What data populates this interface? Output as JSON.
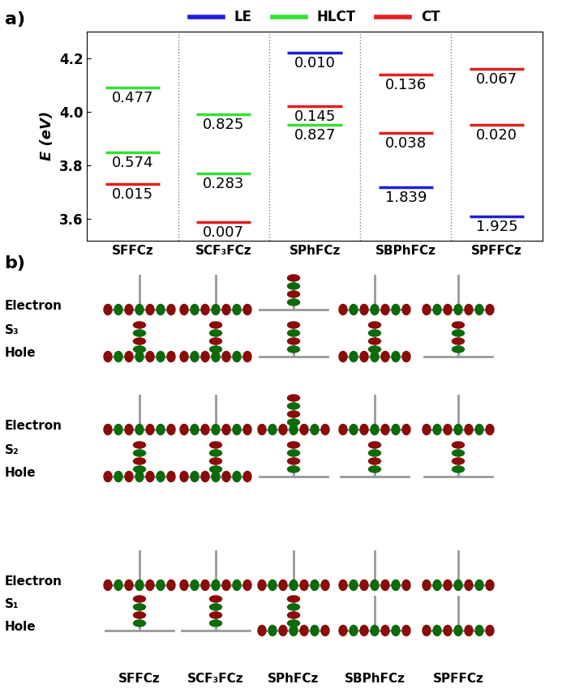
{
  "chart_data": {
    "type": "energy_levels",
    "panel_label": "a)",
    "categories": [
      "SFFCz",
      "SCF₃FCz",
      "SPhFCz",
      "SBPhFCz",
      "SPFFCz"
    ],
    "y_label": "E (eV)",
    "ylim": [
      3.52,
      4.3
    ],
    "yticks": [
      3.6,
      3.8,
      4.0,
      4.2
    ],
    "legend": "top",
    "series": [
      {
        "name": "LE",
        "color": "#1f1fd6",
        "points": [
          {
            "category": "SPhFCz",
            "value": 4.22,
            "label": "0.010"
          },
          {
            "category": "SBPhFCz",
            "value": 3.72,
            "label": "1.839"
          },
          {
            "category": "SPFFCz",
            "value": 3.61,
            "label": "1.925"
          }
        ]
      },
      {
        "name": "HLCT",
        "color": "#33e033",
        "points": [
          {
            "category": "SFFCz",
            "value": 4.09,
            "label": "0.477"
          },
          {
            "category": "SFFCz",
            "value": 3.85,
            "label": "0.574"
          },
          {
            "category": "SCF₃FCz",
            "value": 3.99,
            "label": "0.825"
          },
          {
            "category": "SCF₃FCz",
            "value": 3.77,
            "label": "0.283"
          },
          {
            "category": "SPhFCz",
            "value": 3.95,
            "label": "0.827"
          }
        ]
      },
      {
        "name": "CT",
        "color": "#e02020",
        "points": [
          {
            "category": "SFFCz",
            "value": 3.73,
            "label": "0.015"
          },
          {
            "category": "SCF₃FCz",
            "value": 3.59,
            "label": "0.007"
          },
          {
            "category": "SPhFCz",
            "value": 4.02,
            "label": "0.145"
          },
          {
            "category": "SBPhFCz",
            "value": 4.14,
            "label": "0.136"
          },
          {
            "category": "SBPhFCz",
            "value": 3.92,
            "label": "0.038"
          },
          {
            "category": "SPFFCz",
            "value": 4.16,
            "label": "0.067"
          },
          {
            "category": "SPFFCz",
            "value": 3.95,
            "label": "0.020"
          }
        ]
      }
    ]
  },
  "panel_b": {
    "panel_label": "b)",
    "columns": [
      "SFFCz",
      "SCF₃FCz",
      "SPhFCz",
      "SBPhFCz",
      "SPFFCz"
    ],
    "rows": [
      {
        "state": "S₃",
        "electron": "Electron",
        "hole": "Hole"
      },
      {
        "state": "S₂",
        "electron": "Electron",
        "hole": "Hole"
      },
      {
        "state": "S₁",
        "electron": "Electron",
        "hole": "Hole"
      }
    ]
  }
}
